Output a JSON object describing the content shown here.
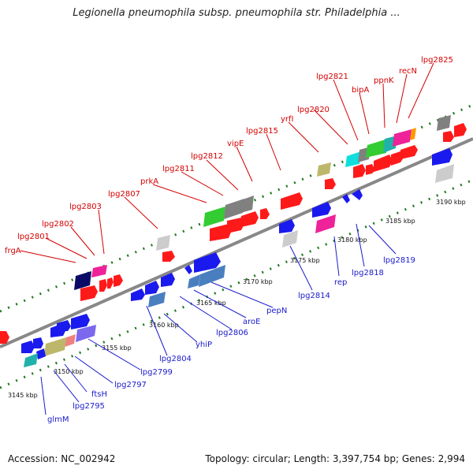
{
  "title": "Legionella pneumophila subsp. pneumophila str. Philadelphia ...",
  "footer": {
    "accession": "Accession: NC_002942",
    "summary": "Topology: circular; Length: 3,397,754 bp; Genes: 2,994"
  },
  "colors": {
    "top_label": "#d40000",
    "bottom_label": "#1a1acc",
    "backbone": "#888888",
    "dots": "#1f7a1f",
    "red": "#ff1a1a",
    "blue": "#1a1aee",
    "navy": "#0a0a66",
    "gray": "#808080",
    "lightgray": "#cccccc",
    "cyan": "#11dddd",
    "green": "#33cc33",
    "magenta": "#ee2299",
    "steel": "#4a7fbf",
    "olive": "#bdb76b",
    "purple": "#7b68ee",
    "salmon": "#f08080",
    "orange": "#ff9900",
    "teal": "#20b2aa"
  },
  "ticks": [
    "3145 kbp",
    "3150 kbp",
    "3155 kbp",
    "3160 kbp",
    "3165 kbp",
    "3170 kbp",
    "3175 kbp",
    "3180 kbp",
    "3185 kbp",
    "3190 kbp"
  ],
  "top_labels": [
    "frgA",
    "lpg2801",
    "lpg2802",
    "lpg2803",
    "lpg2807",
    "prkA",
    "lpg2811",
    "lpg2812",
    "vipE",
    "lpg2815",
    "yrfI",
    "lpg2820",
    "lpg2821",
    "bipA",
    "ppnK",
    "recN",
    "lpg2825"
  ],
  "bottom_labels": [
    "glmM",
    "lpg2795",
    "ftsH",
    "lpg2797",
    "lpg2799",
    "lpg2804",
    "yhiP",
    "lpg2806",
    "aroE",
    "pepN",
    "lpg2814",
    "rep",
    "lpg2818",
    "lpg2819"
  ]
}
